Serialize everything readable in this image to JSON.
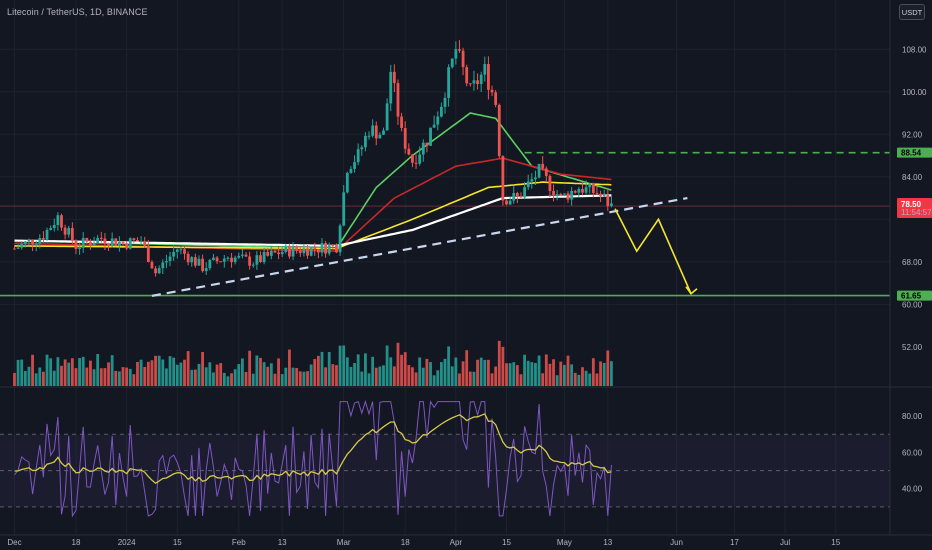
{
  "header": {
    "title": "Litecoin / TetherUS, 1D, BINANCE",
    "currency_button": "USDT"
  },
  "colors": {
    "background": "#131722",
    "up": "#26a69a",
    "down": "#ef5350",
    "ema_green": "#5bd063",
    "ema_red": "#c62828",
    "ema_yellow": "#f5e62c",
    "ema_white": "#ffffff",
    "support": "#4caf50",
    "resistance_dashed": "#4caf50",
    "trendline": "#c9d6ef",
    "forecast": "#f5e62c",
    "rsi_line": "#7e57c2",
    "rsi_ma": "#d4c94a"
  },
  "price_axis": {
    "labels": [
      "108.00",
      "100.00",
      "92.00",
      "84.00",
      "68.00",
      "60.00",
      "52.00"
    ],
    "badges": {
      "resistance": "88.54",
      "price": "78.50",
      "countdown": "11:54:57",
      "support": "61.65"
    }
  },
  "rsi_axis": {
    "labels": [
      "80.00",
      "60.00",
      "40.00"
    ]
  },
  "time_axis": {
    "labels": [
      "Dec",
      "18",
      "2024",
      "15",
      "Feb",
      "13",
      "Mar",
      "18",
      "Apr",
      "15",
      "May",
      "13",
      "Jun",
      "17",
      "Jul",
      "15"
    ]
  },
  "chart_data": {
    "type": "candlestick",
    "symbol": "Litecoin / TetherUS",
    "interval": "1D",
    "exchange": "BINANCE",
    "y_range": [
      58,
      112
    ],
    "last_price": 78.5,
    "key_levels": {
      "resistance": 88.54,
      "support": 61.65
    },
    "trendline": {
      "from": [
        "2024-01-08",
        61.6
      ],
      "to": [
        "2024-06-04",
        80.0
      ]
    },
    "forecast_path": [
      [
        "2024-05-15",
        78.0
      ],
      [
        "2024-05-21",
        70.0
      ],
      [
        "2024-05-27",
        76.0
      ],
      [
        "2024-06-05",
        62.0
      ]
    ],
    "price_series": [
      [
        "2023-12-01",
        70.5
      ],
      [
        "2023-12-09",
        73.0
      ],
      [
        "2023-12-13",
        76.5
      ],
      [
        "2023-12-18",
        71.0
      ],
      [
        "2023-12-25",
        72.5
      ],
      [
        "2023-12-31",
        71.5
      ],
      [
        "2024-01-05",
        72.0
      ],
      [
        "2024-01-09",
        66.0
      ],
      [
        "2024-01-15",
        70.5
      ],
      [
        "2024-01-22",
        67.0
      ],
      [
        "2024-01-29",
        69.0
      ],
      [
        "2024-02-05",
        68.0
      ],
      [
        "2024-02-13",
        70.0
      ],
      [
        "2024-02-22",
        70.5
      ],
      [
        "2024-02-28",
        71.0
      ],
      [
        "2024-03-02",
        86.0
      ],
      [
        "2024-03-05",
        88.0
      ],
      [
        "2024-03-08",
        93.0
      ],
      [
        "2024-03-12",
        92.0
      ],
      [
        "2024-03-14",
        104.0
      ],
      [
        "2024-03-17",
        92.0
      ],
      [
        "2024-03-20",
        87.0
      ],
      [
        "2024-03-24",
        91.0
      ],
      [
        "2024-03-28",
        98.0
      ],
      [
        "2024-04-01",
        108.0
      ],
      [
        "2024-04-05",
        100.0
      ],
      [
        "2024-04-09",
        104.0
      ],
      [
        "2024-04-12",
        98.0
      ],
      [
        "2024-04-14",
        80.0
      ],
      [
        "2024-04-18",
        80.0
      ],
      [
        "2024-04-24",
        85.0
      ],
      [
        "2024-04-30",
        80.0
      ],
      [
        "2024-05-05",
        82.0
      ],
      [
        "2024-05-10",
        81.0
      ],
      [
        "2024-05-14",
        78.5
      ]
    ],
    "moving_averages": [
      {
        "color": "#5bd063",
        "points": [
          [
            "2023-12-01",
            72.0
          ],
          [
            "2024-02-28",
            70.5
          ],
          [
            "2024-03-10",
            82.0
          ],
          [
            "2024-03-20",
            88.0
          ],
          [
            "2024-04-05",
            96.0
          ],
          [
            "2024-04-12",
            95.0
          ],
          [
            "2024-04-22",
            86.0
          ],
          [
            "2024-05-14",
            81.5
          ]
        ]
      },
      {
        "color": "#c62828",
        "points": [
          [
            "2023-12-01",
            71.5
          ],
          [
            "2024-02-28",
            70.0
          ],
          [
            "2024-03-15",
            80.0
          ],
          [
            "2024-04-01",
            86.0
          ],
          [
            "2024-04-14",
            87.5
          ],
          [
            "2024-04-30",
            84.5
          ],
          [
            "2024-05-14",
            83.5
          ]
        ]
      },
      {
        "color": "#f5e62c",
        "points": [
          [
            "2023-12-01",
            71.0
          ],
          [
            "2024-02-28",
            70.5
          ],
          [
            "2024-03-20",
            76.0
          ],
          [
            "2024-04-10",
            82.0
          ],
          [
            "2024-04-25",
            83.0
          ],
          [
            "2024-05-14",
            82.5
          ]
        ]
      },
      {
        "color": "#ffffff",
        "points": [
          [
            "2023-12-01",
            72.0
          ],
          [
            "2024-01-15",
            71.5
          ],
          [
            "2024-02-28",
            71.0
          ],
          [
            "2024-03-20",
            74.0
          ],
          [
            "2024-04-14",
            80.0
          ],
          [
            "2024-05-14",
            80.5
          ]
        ]
      }
    ],
    "rsi": {
      "y_range": [
        20,
        90
      ],
      "overbought": 70,
      "mid": 50,
      "oversold": 30,
      "last_ma": 43.0
    }
  }
}
